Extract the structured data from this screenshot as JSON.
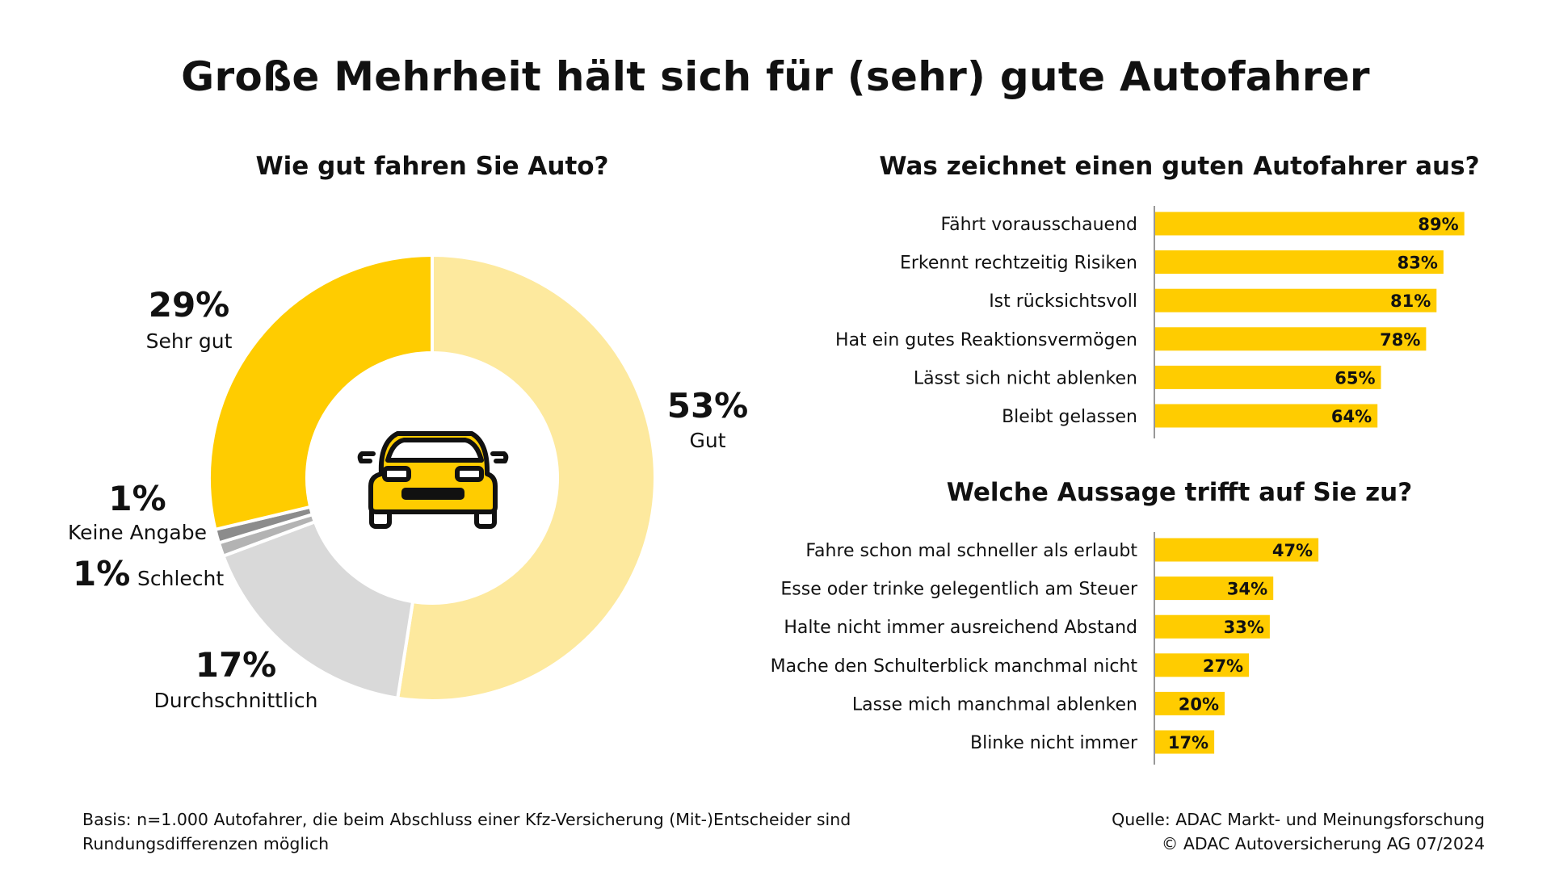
{
  "title": "Große Mehrheit hält sich für (sehr) gute Autofahrer",
  "colors": {
    "accent": "#ffcc00",
    "light_yellow": "#fde99e",
    "light_gray": "#d9d9d9",
    "mid_gray": "#b3b3b3",
    "dark_gray": "#8c8c8c"
  },
  "icons": {
    "center": "car-icon"
  },
  "chart_data": [
    {
      "type": "pie",
      "title": "Wie gut fahren Sie Auto?",
      "slices": [
        {
          "label": "Gut",
          "value": 53,
          "value_label": "53%",
          "color": "#fde99e"
        },
        {
          "label": "Durchschnittlich",
          "value": 17,
          "value_label": "17%",
          "color": "#d9d9d9"
        },
        {
          "label": "Schlecht",
          "value": 1,
          "value_label": "1%",
          "color": "#b3b3b3"
        },
        {
          "label": "Keine Angabe",
          "value": 1,
          "value_label": "1%",
          "color": "#8c8c8c"
        },
        {
          "label": "Sehr gut",
          "value": 29,
          "value_label": "29%",
          "color": "#ffcc00"
        }
      ]
    },
    {
      "type": "bar",
      "orientation": "horizontal",
      "title": "Was zeichnet einen guten Autofahrer aus?",
      "categories": [
        "Fährt vorausschauend",
        "Erkennt rechtzeitig Risiken",
        "Ist rücksichtsvoll",
        "Hat ein gutes Reaktionsvermögen",
        "Lässt sich nicht ablenken",
        "Bleibt gelassen"
      ],
      "values": [
        89,
        83,
        81,
        78,
        65,
        64
      ],
      "value_labels": [
        "89%",
        "83%",
        "81%",
        "78%",
        "65%",
        "64%"
      ],
      "xlim": [
        0,
        100
      ]
    },
    {
      "type": "bar",
      "orientation": "horizontal",
      "title": "Welche Aussage trifft auf Sie zu?",
      "categories": [
        "Fahre schon mal schneller als erlaubt",
        "Esse oder trinke gelegentlich am Steuer",
        "Halte nicht immer ausreichend Abstand",
        "Mache den Schulterblick manchmal nicht",
        "Lasse mich manchmal ablenken",
        "Blinke nicht immer"
      ],
      "values": [
        47,
        34,
        33,
        27,
        20,
        17
      ],
      "value_labels": [
        "47%",
        "34%",
        "33%",
        "27%",
        "20%",
        "17%"
      ],
      "xlim": [
        0,
        100
      ]
    }
  ],
  "footer": {
    "basis_line1": "Basis: n=1.000 Autofahrer, die beim Abschluss einer Kfz-Versicherung (Mit-)Entscheider sind",
    "basis_line2": "Rundungsdifferenzen möglich",
    "source_line1": "Quelle: ADAC Markt- und Meinungsforschung",
    "source_line2": "© ADAC Autoversicherung AG 07/2024"
  }
}
